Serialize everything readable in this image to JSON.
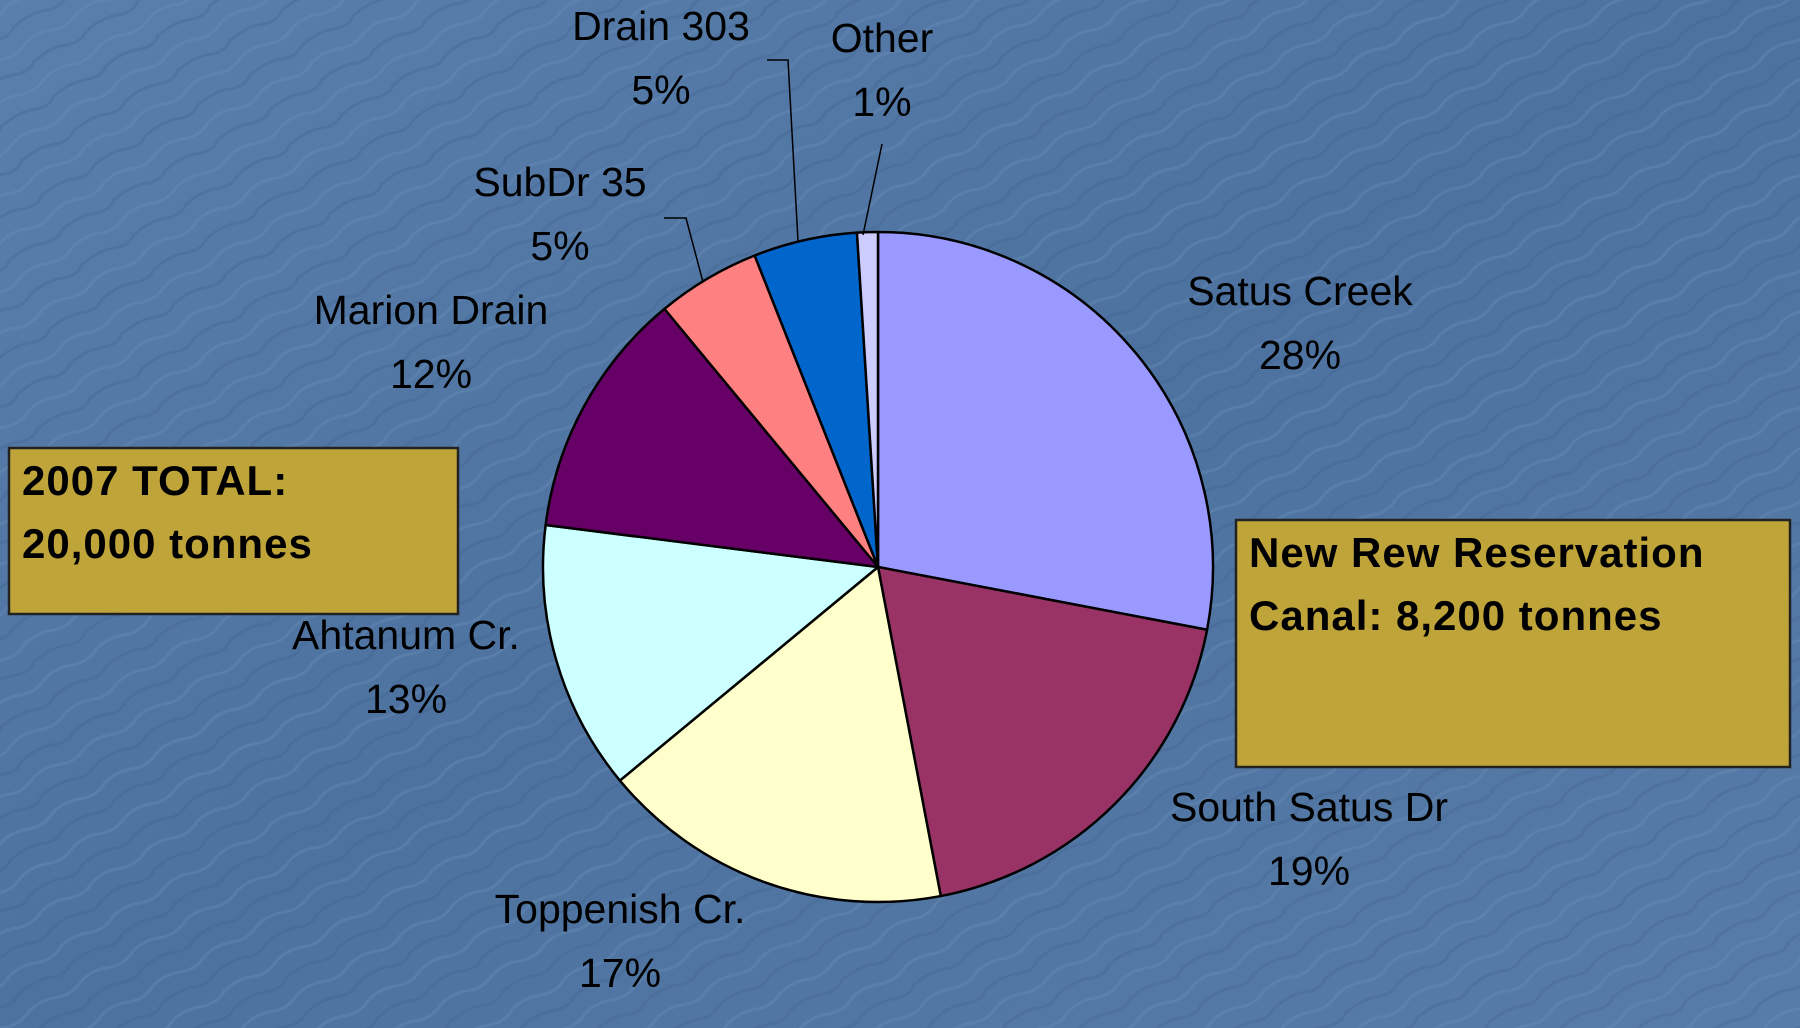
{
  "chart_data": {
    "type": "pie",
    "categories": [
      "Satus Creek",
      "South Satus Dr",
      "Toppenish Cr.",
      "Ahtanum Cr.",
      "Marion Drain",
      "SubDr 35",
      "Drain 303",
      "Other"
    ],
    "values": [
      28,
      19,
      17,
      13,
      12,
      5,
      5,
      1
    ],
    "value_labels": [
      "28%",
      "19%",
      "17%",
      "13%",
      "12%",
      "5%",
      "5%",
      "1%"
    ],
    "colors": [
      "#9999ff",
      "#993366",
      "#ffffcc",
      "#ccffff",
      "#660066",
      "#ff8080",
      "#0066cc",
      "#ccccff"
    ],
    "annotations": [
      {
        "lines": [
          "2007 TOTAL:",
          "20,000 tonnes"
        ]
      },
      {
        "lines": [
          "New Rew Reservation",
          "Canal:  8,200 tonnes"
        ]
      }
    ]
  }
}
